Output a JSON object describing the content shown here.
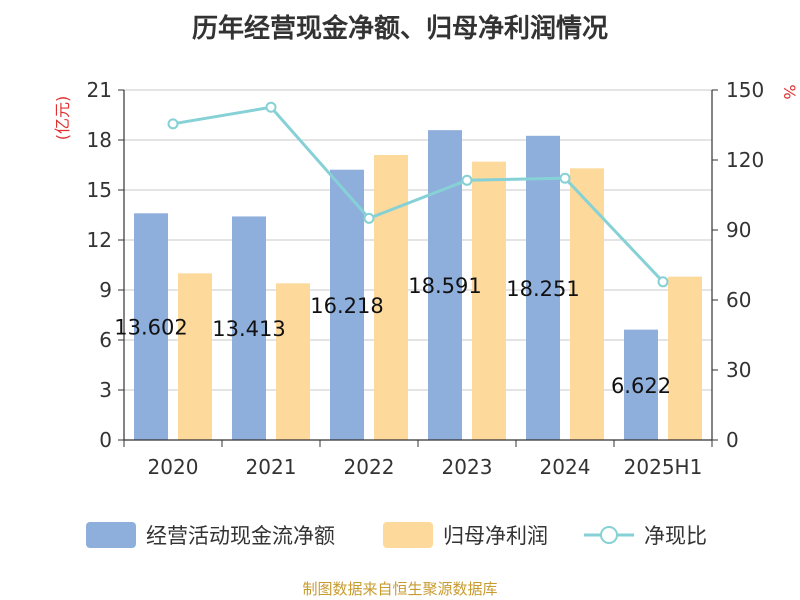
{
  "chart_data": {
    "type": "bar",
    "title": "历年经营现金净额、归母净利润情况",
    "categories": [
      "2020",
      "2021",
      "2022",
      "2023",
      "2024",
      "2025H1"
    ],
    "y_left": {
      "label": "(亿元)",
      "min": 0,
      "max": 21,
      "ticks": [
        0,
        3,
        6,
        9,
        12,
        15,
        18,
        21
      ]
    },
    "y_right": {
      "label": "%",
      "min": 0,
      "max": 150,
      "ticks": [
        0,
        30,
        60,
        90,
        120,
        150
      ]
    },
    "grid": true,
    "legend_position": "bottom",
    "series": [
      {
        "name": "经营活动现金流净额",
        "type": "bar",
        "axis": "left",
        "color": "#8eaedc",
        "values": [
          13.602,
          13.413,
          16.218,
          18.591,
          18.251,
          6.622
        ],
        "data_labels": [
          "13.602",
          "13.413",
          "16.218",
          "18.591",
          "18.251",
          "6.622"
        ]
      },
      {
        "name": "归母净利润",
        "type": "bar",
        "axis": "left",
        "color": "#fdd99b",
        "values": [
          10.0,
          9.4,
          17.1,
          16.7,
          16.3,
          9.8
        ]
      },
      {
        "name": "净现比",
        "type": "line",
        "axis": "right",
        "color": "#86d1d6",
        "values": [
          135.5,
          142.6,
          95.0,
          111.3,
          112.2,
          67.8
        ]
      }
    ]
  },
  "footer": {
    "source": "制图数据来自恒生聚源数据库"
  }
}
